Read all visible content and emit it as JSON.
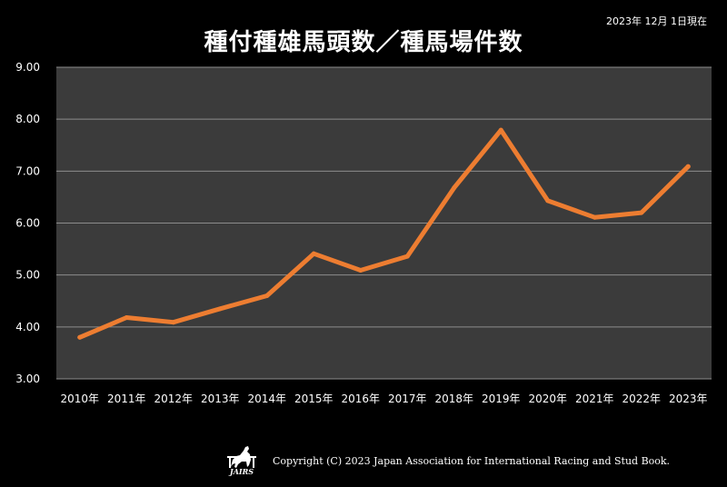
{
  "header": {
    "date_note": "2023年 12月 1日現在",
    "title": "種付種雄馬頭数／種馬場件数"
  },
  "chart_data": {
    "type": "line",
    "title": "種付種雄馬頭数／種馬場件数",
    "categories": [
      "2010年",
      "2011年",
      "2012年",
      "2013年",
      "2014年",
      "2015年",
      "2016年",
      "2017年",
      "2018年",
      "2019年",
      "2020年",
      "2021年",
      "2022年",
      "2023年"
    ],
    "series": [
      {
        "values": [
          3.8,
          4.18,
          4.09,
          4.35,
          4.6,
          5.41,
          5.09,
          5.36,
          6.68,
          7.79,
          6.43,
          6.11,
          6.2,
          7.09
        ]
      }
    ],
    "ylim": [
      3.0,
      9.0
    ],
    "yticks": [
      "3.00",
      "4.00",
      "5.00",
      "6.00",
      "7.00",
      "8.00",
      "9.00"
    ],
    "grid": true,
    "legend": "none",
    "colors": {
      "line": "#ED7D31",
      "plot_bg": "#3B3B3B",
      "grid": "#8C8C8C",
      "page_bg": "#000000"
    }
  },
  "footer": {
    "logo_text": "JAIRS",
    "copyright": "Copyright (C) 2023 Japan Association for International Racing and Stud Book."
  }
}
